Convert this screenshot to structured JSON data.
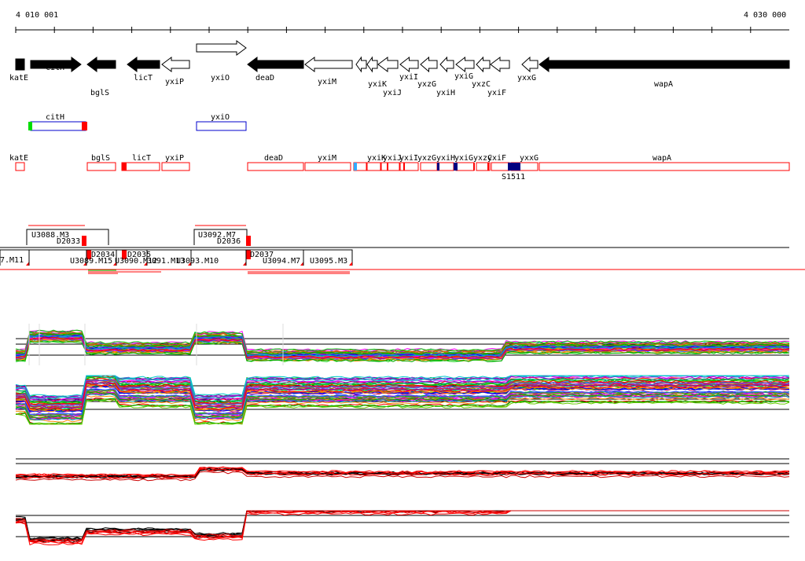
{
  "ruler": {
    "left_label": "4 010 001",
    "right_label": "4 030 000"
  },
  "genes": [
    {
      "name": "katE",
      "label": "katE"
    },
    {
      "name": "citH",
      "label": "citH"
    },
    {
      "name": "bglS",
      "label": "bglS"
    },
    {
      "name": "licT",
      "label": "licT"
    },
    {
      "name": "yxiP",
      "label": "yxiP"
    },
    {
      "name": "yxiO",
      "label": "yxiO"
    },
    {
      "name": "deaD",
      "label": "deaD"
    },
    {
      "name": "yxiM",
      "label": "yxiM"
    },
    {
      "name": "yxiK",
      "label": "yxiK"
    },
    {
      "name": "yxiJ",
      "label": "yxiJ"
    },
    {
      "name": "yxiI",
      "label": "yxiI"
    },
    {
      "name": "yxzG",
      "label": "yxzG"
    },
    {
      "name": "yxiH",
      "label": "yxiH"
    },
    {
      "name": "yxiG",
      "label": "yxiG"
    },
    {
      "name": "yxzC",
      "label": "yxzC"
    },
    {
      "name": "yxiF",
      "label": "yxiF"
    },
    {
      "name": "yxxG",
      "label": "yxxG"
    },
    {
      "name": "wapA",
      "label": "wapA"
    }
  ],
  "highlight_genes": [
    {
      "name": "citH",
      "label": "citH"
    },
    {
      "name": "yxiO",
      "label": "yxiO"
    }
  ],
  "track_genes": [
    {
      "label": "katE"
    },
    {
      "label": "bglS"
    },
    {
      "label": "licT"
    },
    {
      "label": "yxiP"
    },
    {
      "label": "deaD"
    },
    {
      "label": "yxiM"
    },
    {
      "label": "yxiK"
    },
    {
      "label": "yxiJ"
    },
    {
      "label": "yxiI"
    },
    {
      "label": "yxzG"
    },
    {
      "label": "yxiH"
    },
    {
      "label": "yxiG"
    },
    {
      "label": "yxzC"
    },
    {
      "label": "yxiF"
    },
    {
      "label": "yxxG"
    },
    {
      "label": "wapA"
    }
  ],
  "site_label": "S1511",
  "segments_top": [
    {
      "label": "U3088.M3"
    },
    {
      "label": "D2033"
    },
    {
      "label": "U3092.M7"
    },
    {
      "label": "D2036"
    }
  ],
  "segments_bottom": [
    {
      "label": "7.M11"
    },
    {
      "label": "D2034"
    },
    {
      "label": "U3089.M15"
    },
    {
      "label": "D2035"
    },
    {
      "label": "U3090.M12"
    },
    {
      "label": "3091.M13"
    },
    {
      "label": "U3093.M10"
    },
    {
      "label": "D2037"
    },
    {
      "label": "U3094.M7"
    },
    {
      "label": "U3095.M3"
    }
  ],
  "colors": {
    "black": "#000000",
    "red": "#ff0000",
    "blue": "#0000cc",
    "green": "#00dd00",
    "navy": "#000080"
  }
}
